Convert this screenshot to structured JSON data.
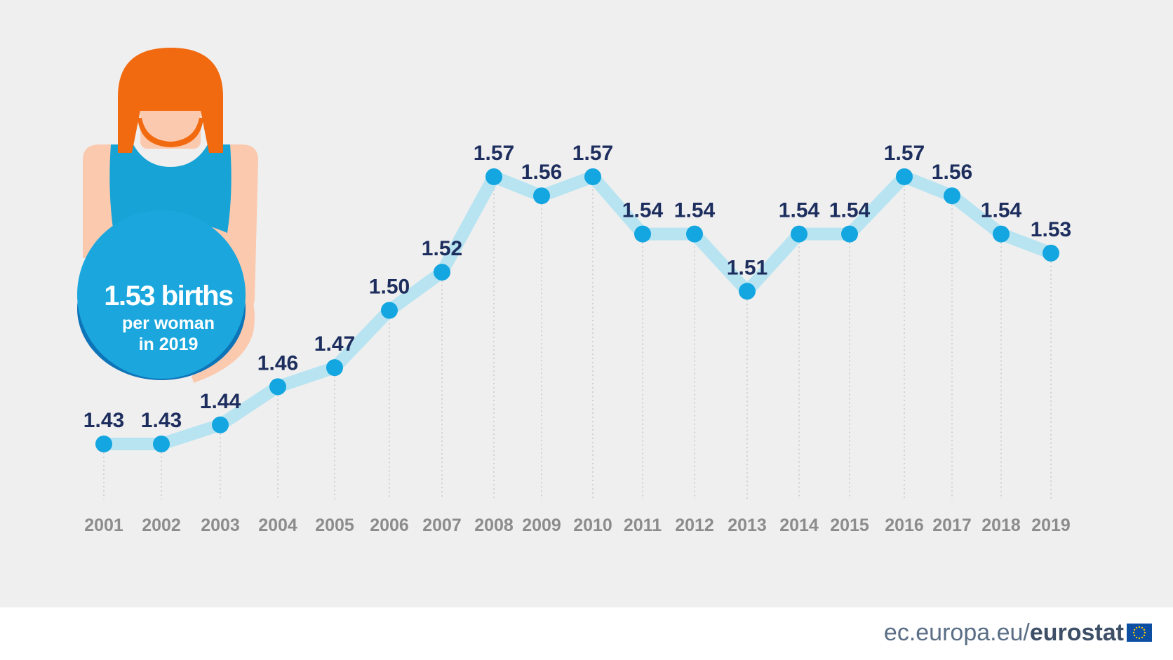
{
  "chart_data": {
    "type": "line",
    "x": [
      "2001",
      "2002",
      "2003",
      "2004",
      "2005",
      "2006",
      "2007",
      "2008",
      "2009",
      "2010",
      "2011",
      "2012",
      "2013",
      "2014",
      "2015",
      "2016",
      "2017",
      "2018",
      "2019"
    ],
    "values": [
      1.43,
      1.43,
      1.44,
      1.46,
      1.47,
      1.5,
      1.52,
      1.57,
      1.56,
      1.57,
      1.54,
      1.54,
      1.51,
      1.54,
      1.54,
      1.57,
      1.56,
      1.54,
      1.53
    ],
    "value_labels": [
      "1.43",
      "1.43",
      "1.44",
      "1.46",
      "1.47",
      "1.50",
      "1.52",
      "1.57",
      "1.56",
      "1.57",
      "1.54",
      "1.54",
      "1.51",
      "1.54",
      "1.54",
      "1.57",
      "1.56",
      "1.54",
      "1.53"
    ],
    "title": "",
    "xlabel": "",
    "ylabel": "",
    "grid": "vertical dotted drop lines",
    "legend": "none",
    "colors": {
      "line": "#b8e4f2",
      "marker": "#13a6e0",
      "label": "#1d2e5e",
      "year": "#8c8c8c"
    }
  },
  "badge": {
    "big": "1.53 births",
    "line2": "per woman",
    "line3": "in 2019"
  },
  "footer": {
    "domain": "ec.europa.eu/",
    "brand": "eurostat",
    "flag_icon": "eu-flag-icon"
  },
  "colors": {
    "background": "#efefef",
    "hair": "#f26a0f",
    "skin": "#fbc9ad",
    "top": "#17a3d6",
    "badge": "#1ba7dd",
    "badge_dark": "#0e74b8"
  }
}
